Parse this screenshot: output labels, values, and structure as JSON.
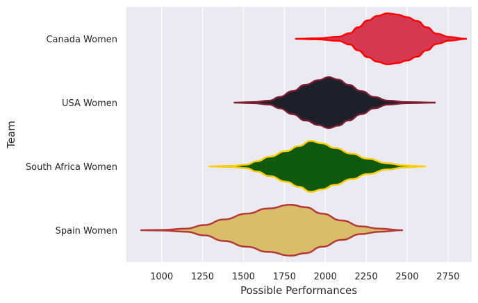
{
  "chart_data": {
    "type": "violin",
    "orientation": "horizontal",
    "xlabel": "Possible Performances",
    "ylabel": "Team",
    "xlim": [
      785,
      2895
    ],
    "xticks": [
      1000,
      1250,
      1500,
      1750,
      2000,
      2250,
      2500,
      2750
    ],
    "grid": true,
    "background": "#eaeaf2",
    "series": [
      {
        "name": "Canada Women",
        "fill": "#d63851",
        "stroke": "#ff0000",
        "profile": [
          [
            1820,
            0.0
          ],
          [
            1950,
            0.02
          ],
          [
            2080,
            0.08
          ],
          [
            2150,
            0.22
          ],
          [
            2200,
            0.45
          ],
          [
            2260,
            0.72
          ],
          [
            2320,
            0.9
          ],
          [
            2380,
            1.0
          ],
          [
            2440,
            0.95
          ],
          [
            2500,
            0.85
          ],
          [
            2560,
            0.7
          ],
          [
            2620,
            0.45
          ],
          [
            2680,
            0.2
          ],
          [
            2760,
            0.07
          ],
          [
            2860,
            0.0
          ]
        ]
      },
      {
        "name": "USA Women",
        "fill": "#1d1f2b",
        "stroke": "#7a1e30",
        "profile": [
          [
            1445,
            0.0
          ],
          [
            1560,
            0.02
          ],
          [
            1660,
            0.08
          ],
          [
            1720,
            0.22
          ],
          [
            1800,
            0.45
          ],
          [
            1880,
            0.7
          ],
          [
            1960,
            0.88
          ],
          [
            2020,
            1.0
          ],
          [
            2080,
            0.9
          ],
          [
            2140,
            0.7
          ],
          [
            2220,
            0.45
          ],
          [
            2300,
            0.22
          ],
          [
            2380,
            0.08
          ],
          [
            2500,
            0.02
          ],
          [
            2670,
            0.0
          ]
        ]
      },
      {
        "name": "South Africa Women",
        "fill": "#0f5a0f",
        "stroke": "#ffcc00",
        "profile": [
          [
            1290,
            0.0
          ],
          [
            1420,
            0.02
          ],
          [
            1520,
            0.07
          ],
          [
            1580,
            0.2
          ],
          [
            1660,
            0.38
          ],
          [
            1760,
            0.6
          ],
          [
            1840,
            0.8
          ],
          [
            1910,
            1.0
          ],
          [
            1980,
            0.9
          ],
          [
            2060,
            0.72
          ],
          [
            2160,
            0.5
          ],
          [
            2260,
            0.3
          ],
          [
            2380,
            0.12
          ],
          [
            2480,
            0.04
          ],
          [
            2610,
            0.0
          ]
        ]
      },
      {
        "name": "Spain Women",
        "fill": "#d9bd6a",
        "stroke": "#b33a35",
        "profile": [
          [
            875,
            0.0
          ],
          [
            1000,
            0.01
          ],
          [
            1150,
            0.06
          ],
          [
            1260,
            0.2
          ],
          [
            1380,
            0.42
          ],
          [
            1520,
            0.65
          ],
          [
            1650,
            0.85
          ],
          [
            1790,
            1.0
          ],
          [
            1880,
            0.9
          ],
          [
            1980,
            0.65
          ],
          [
            2100,
            0.38
          ],
          [
            2220,
            0.15
          ],
          [
            2330,
            0.06
          ],
          [
            2470,
            0.0
          ]
        ]
      }
    ]
  }
}
